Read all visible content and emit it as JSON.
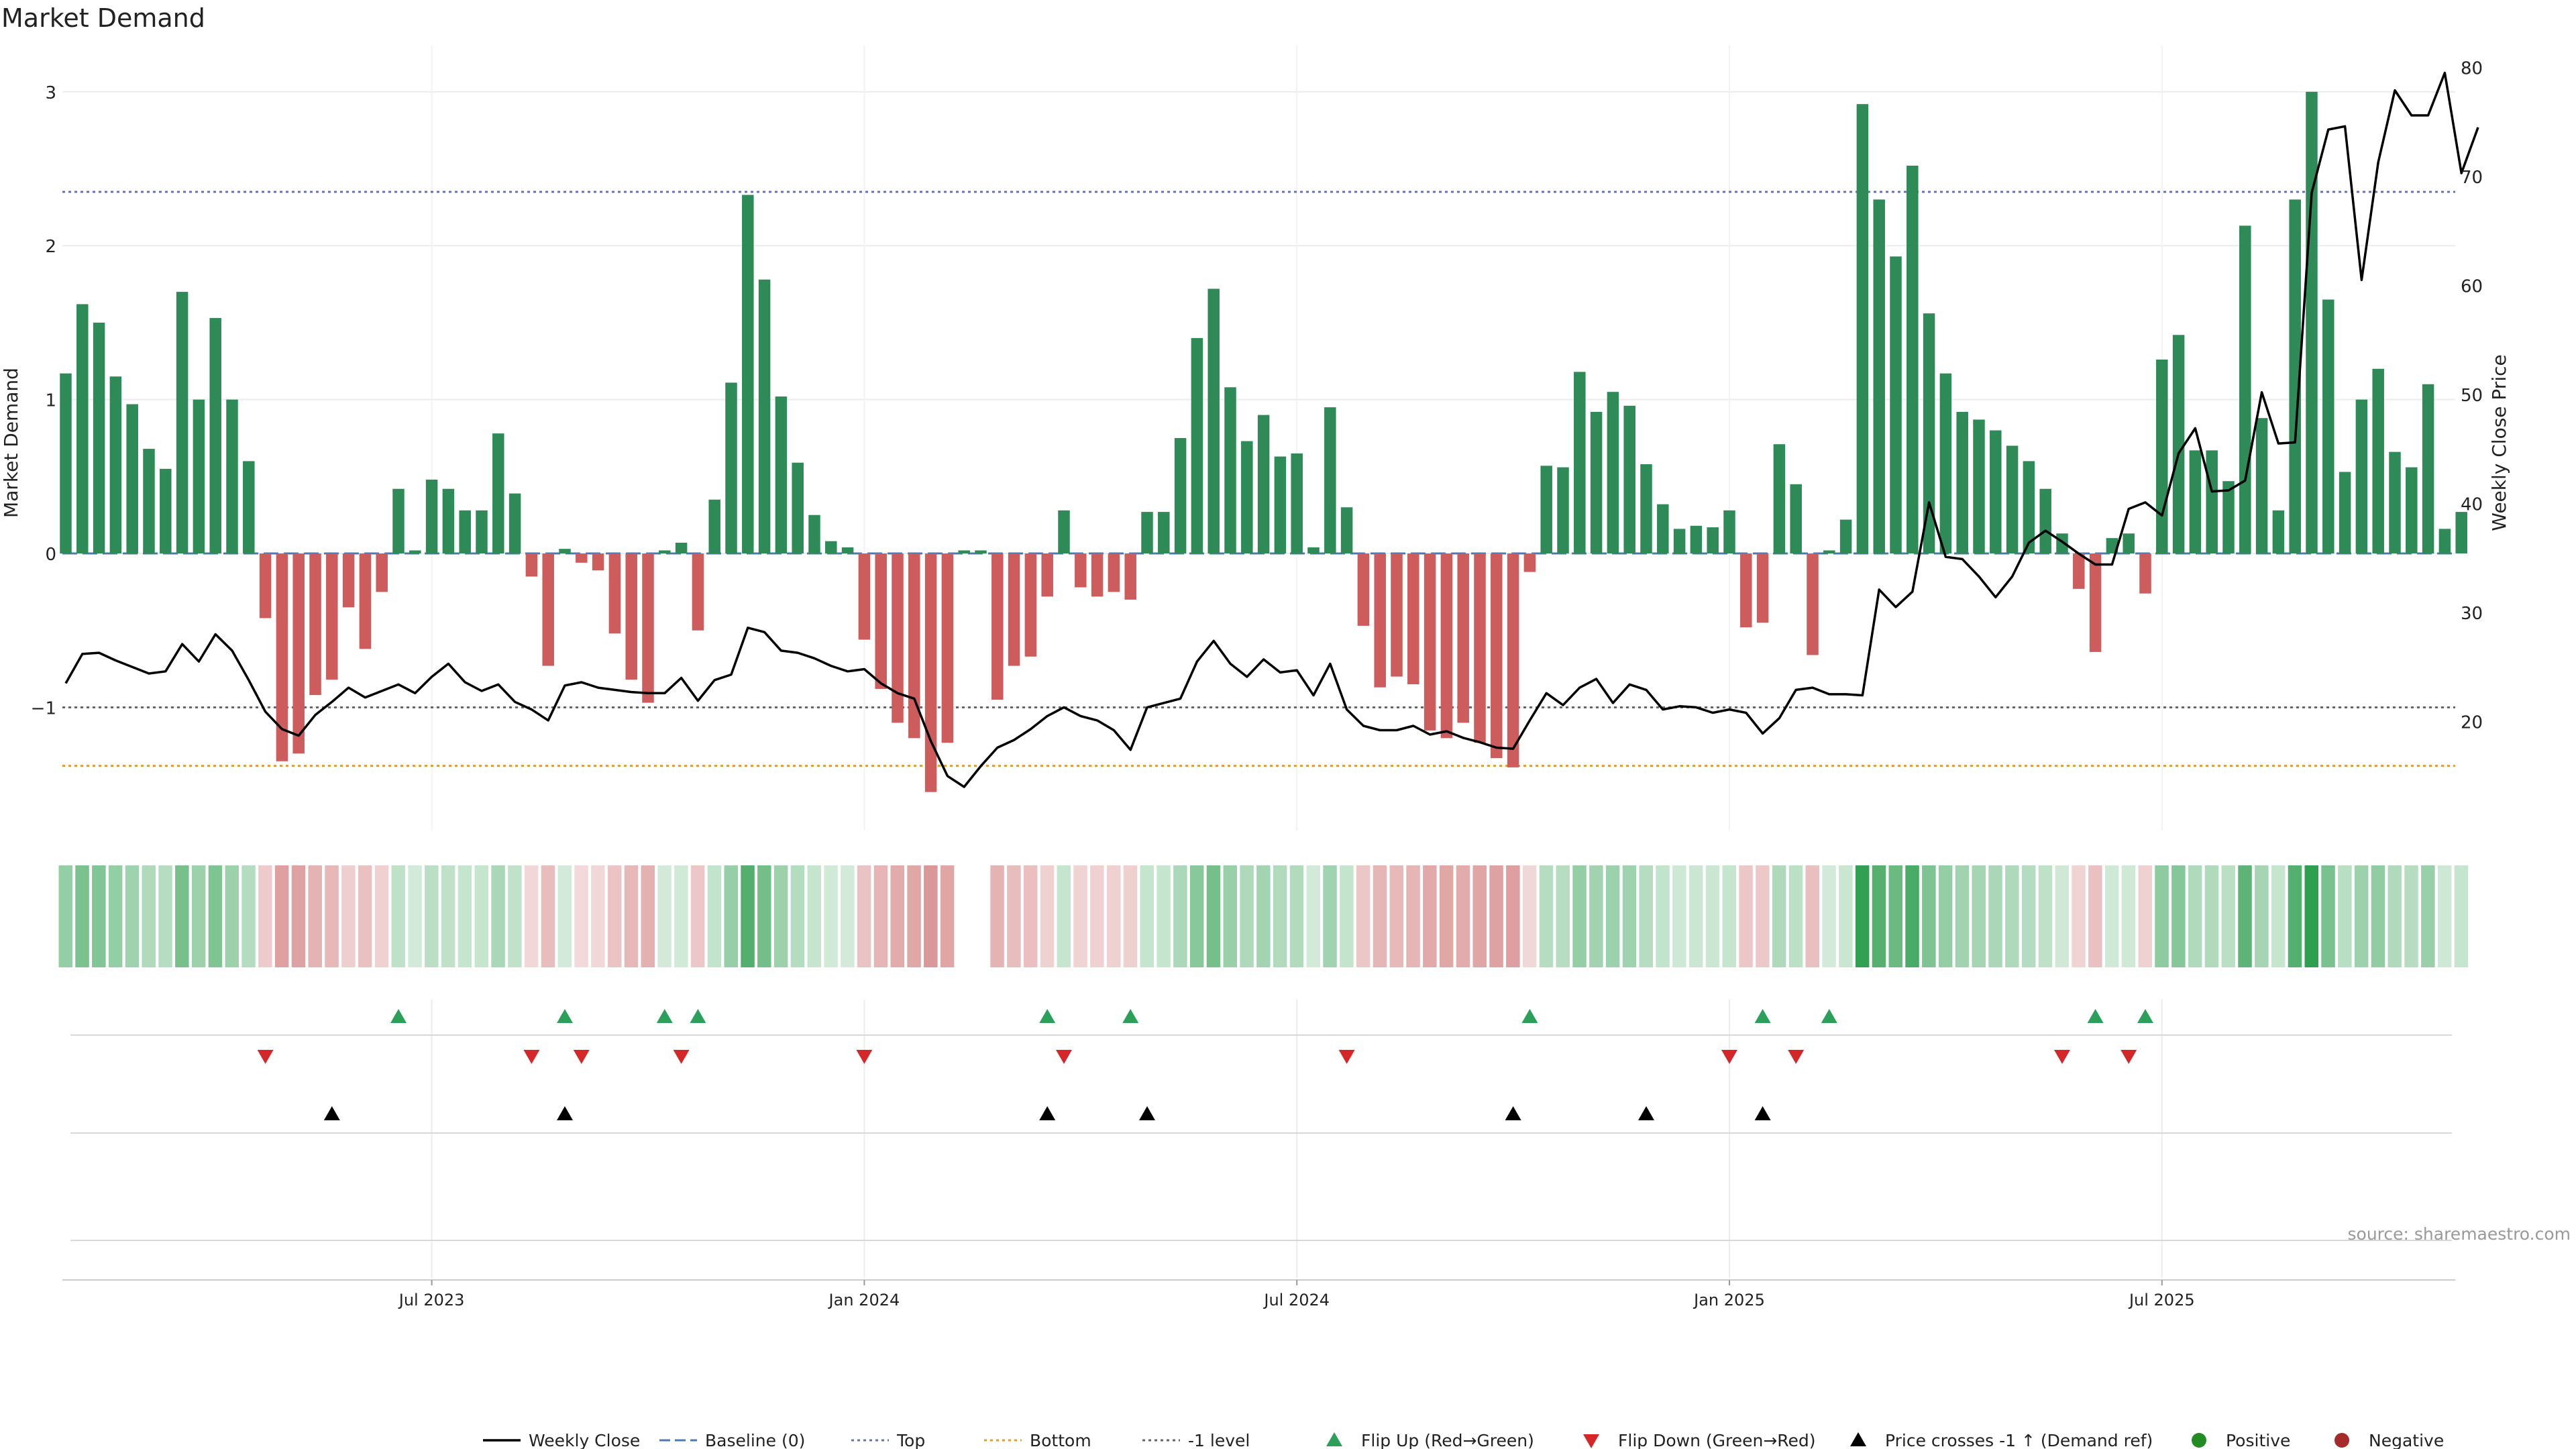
{
  "chart_data": {
    "type": "bar",
    "title": "Market Demand",
    "ylabel_left": "Market Demand",
    "ylabel_right": "Weekly Close Price",
    "source": "source: sharemaestro.com",
    "ylim_left": [
      -1.8,
      3.3
    ],
    "ylim_right": [
      10,
      82
    ],
    "yticks_left": [
      "−1",
      "0",
      "1",
      "2",
      "3"
    ],
    "yticks_right": [
      "20",
      "30",
      "40",
      "50",
      "60",
      "70",
      "80"
    ],
    "xticks": [
      "Jul 2023",
      "Jan 2024",
      "Jul 2024",
      "Jan 2025",
      "Jul 2025"
    ],
    "xtick_week_index": [
      22,
      48,
      74,
      100,
      126
    ],
    "reference_lines": {
      "top": 2.35,
      "bottom": -1.38,
      "minus_one": -1.0,
      "baseline": 0
    },
    "demand": [
      1.17,
      1.62,
      1.5,
      1.15,
      0.97,
      0.68,
      0.55,
      1.7,
      1.0,
      1.53,
      1.0,
      0.6,
      -0.42,
      -1.35,
      -1.3,
      -0.92,
      -0.82,
      -0.35,
      -0.62,
      -0.25,
      0.42,
      0.02,
      0.48,
      0.42,
      0.28,
      0.28,
      0.78,
      0.39,
      -0.15,
      -0.73,
      0.03,
      -0.06,
      -0.11,
      -0.52,
      -0.82,
      -0.97,
      0.02,
      0.07,
      -0.5,
      0.35,
      1.11,
      2.33,
      1.78,
      1.02,
      0.59,
      0.25,
      0.08,
      0.04,
      -0.56,
      -0.88,
      -1.1,
      -1.2,
      -1.55,
      -1.23,
      0.02,
      0.02,
      -0.95,
      -0.73,
      -0.67,
      -0.28,
      0.28,
      -0.22,
      -0.28,
      -0.25,
      -0.3,
      0.27,
      0.27,
      0.75,
      1.4,
      1.72,
      1.08,
      0.73,
      0.9,
      0.63,
      0.65,
      0.04,
      0.95,
      0.3,
      -0.47,
      -0.87,
      -0.8,
      -0.85,
      -1.15,
      -1.2,
      -1.1,
      -1.23,
      -1.33,
      -1.39,
      -0.12,
      0.57,
      0.56,
      1.18,
      0.92,
      1.05,
      0.96,
      0.58,
      0.32,
      0.16,
      0.18,
      0.17,
      0.28,
      -0.48,
      -0.45,
      0.71,
      0.45,
      -0.66,
      0.02,
      0.22,
      2.92,
      2.3,
      1.93,
      2.52,
      1.56,
      1.17,
      0.92,
      0.87,
      0.8,
      0.7,
      0.6,
      0.42,
      0.13,
      -0.23,
      -0.64,
      0.1,
      0.13,
      -0.26,
      1.26,
      1.42,
      0.67,
      0.67,
      0.47,
      2.13,
      0.88,
      0.28,
      2.3,
      3.0,
      1.65,
      0.53,
      1.0,
      1.2,
      0.66,
      0.56,
      1.1,
      0.16,
      0.27
    ],
    "weekly_close": [
      23.5,
      26.2,
      26.3,
      25.6,
      25.0,
      24.4,
      24.6,
      27.1,
      25.5,
      28.0,
      26.5,
      23.8,
      20.9,
      19.3,
      18.7,
      20.6,
      21.8,
      23.1,
      22.2,
      22.8,
      23.4,
      22.6,
      24.1,
      25.3,
      23.6,
      22.8,
      23.4,
      21.8,
      21.1,
      20.1,
      23.3,
      23.6,
      23.1,
      22.9,
      22.7,
      22.6,
      22.6,
      24.0,
      21.9,
      23.8,
      24.3,
      28.6,
      28.2,
      26.5,
      26.3,
      25.8,
      25.1,
      24.6,
      24.8,
      23.5,
      22.6,
      22.1,
      18.2,
      15.0,
      14.0,
      15.9,
      17.6,
      18.3,
      19.3,
      20.5,
      21.3,
      20.5,
      20.1,
      19.2,
      17.4,
      21.3,
      21.7,
      22.1,
      25.5,
      27.4,
      25.3,
      24.1,
      25.7,
      24.5,
      24.7,
      22.4,
      25.3,
      21.1,
      19.6,
      19.2,
      19.2,
      19.6,
      18.8,
      19.1,
      18.5,
      18.1,
      17.6,
      17.5,
      20.1,
      22.6,
      21.5,
      23.1,
      23.9,
      21.7,
      23.4,
      22.9,
      21.1,
      21.4,
      21.3,
      20.8,
      21.1,
      20.8,
      18.9,
      20.3,
      22.9,
      23.1,
      22.5,
      22.5,
      22.4,
      32.1,
      30.5,
      31.9,
      40.1,
      35.1,
      34.9,
      33.3,
      31.4,
      33.3,
      36.4,
      37.5,
      36.5,
      35.4,
      34.4,
      34.4,
      39.5,
      40.1,
      38.9,
      44.6,
      46.9,
      41.1,
      41.2,
      42.1,
      50.2,
      45.5,
      45.6,
      68.5,
      74.3,
      74.6,
      60.5,
      71.3,
      77.9,
      75.6,
      75.6,
      79.5,
      70.3,
      74.5
    ],
    "heat_strip": {
      "empty_weeks": [
        54,
        55
      ],
      "positive_color": "#2e9e4f",
      "negative_color": "#c45656"
    },
    "flip_up_weeks": [
      20,
      30,
      36,
      38,
      59,
      64,
      88,
      102,
      106,
      122,
      125
    ],
    "flip_down_weeks": [
      12,
      28,
      31,
      37,
      48,
      60,
      77,
      100,
      104,
      120,
      124
    ],
    "price_cross_weeks": [
      16,
      30,
      59,
      65,
      87,
      95,
      102
    ],
    "colors": {
      "positive_bar": "#2e8b57",
      "negative_bar": "#cd5c5c",
      "close_line": "#000000",
      "baseline": "#4d7ab5",
      "top_line": "#6a6fb8",
      "bottom_line": "#e69c2a",
      "minus_one_line": "#666666",
      "flip_up": "#2ca05a",
      "flip_down": "#d62728",
      "price_cross": "#000000",
      "positive_dot": "#228b22",
      "negative_dot": "#a52a2a"
    },
    "legend": [
      {
        "label": "Weekly Close",
        "kind": "line"
      },
      {
        "label": "Baseline (0)",
        "kind": "dash"
      },
      {
        "label": "Top",
        "kind": "dot"
      },
      {
        "label": "Bottom",
        "kind": "dotorange"
      },
      {
        "label": "-1 level",
        "kind": "dotgray"
      },
      {
        "label": "Flip Up (Red→Green)",
        "kind": "tri-up-green"
      },
      {
        "label": "Flip Down (Green→Red)",
        "kind": "tri-down-red"
      },
      {
        "label": "Price crosses -1 ↑ (Demand ref)",
        "kind": "tri-up-black"
      },
      {
        "label": "Positive",
        "kind": "dot-green"
      },
      {
        "label": "Negative",
        "kind": "dot-red"
      }
    ]
  }
}
